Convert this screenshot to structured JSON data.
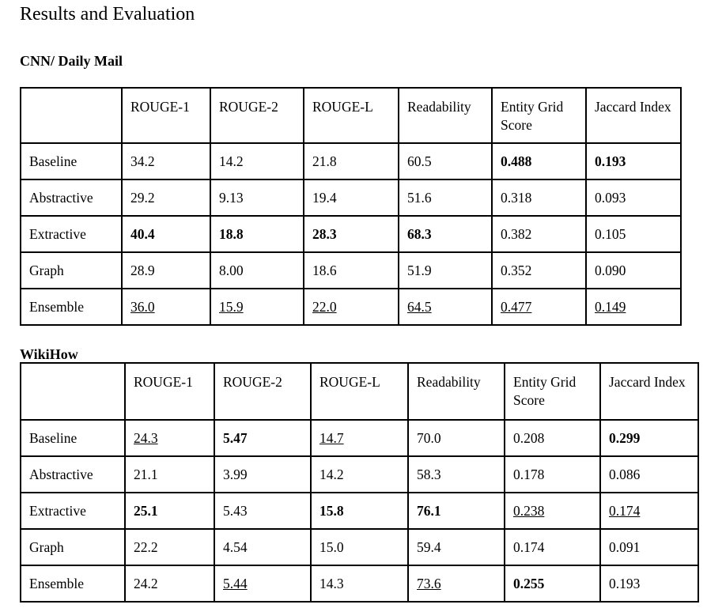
{
  "title": "Results and Evaluation",
  "tables": [
    {
      "name": "CNN/ Daily Mail",
      "columns": [
        "",
        "ROUGE-1",
        "ROUGE-2",
        "ROUGE-L",
        "Readability",
        "Entity Grid Score",
        "Jaccard Index"
      ],
      "rows": [
        {
          "cells": [
            "Baseline",
            "34.2",
            "14.2",
            "21.8",
            "60.5",
            "0.488",
            "0.193"
          ],
          "bold": [
            5,
            6
          ],
          "underline": []
        },
        {
          "cells": [
            "Abstractive",
            "29.2",
            "9.13",
            "19.4",
            "51.6",
            "0.318",
            "0.093"
          ],
          "bold": [],
          "underline": []
        },
        {
          "cells": [
            "Extractive",
            "40.4",
            "18.8",
            "28.3",
            "68.3",
            "0.382",
            "0.105"
          ],
          "bold": [
            1,
            2,
            3,
            4
          ],
          "underline": []
        },
        {
          "cells": [
            "Graph",
            "28.9",
            "8.00",
            "18.6",
            "51.9",
            "0.352",
            "0.090"
          ],
          "bold": [],
          "underline": []
        },
        {
          "cells": [
            "Ensemble",
            "36.0",
            "15.9",
            "22.0",
            "64.5",
            "0.477",
            "0.149"
          ],
          "bold": [],
          "underline": [
            1,
            2,
            3,
            4,
            5,
            6
          ]
        }
      ]
    },
    {
      "name": "WikiHow",
      "columns": [
        "",
        "ROUGE-1",
        "ROUGE-2",
        "ROUGE-L",
        "Readability",
        "Entity Grid Score",
        "Jaccard Index"
      ],
      "rows": [
        {
          "cells": [
            "Baseline",
            "24.3",
            "5.47",
            "14.7",
            "70.0",
            "0.208",
            "0.299"
          ],
          "bold": [
            2,
            6
          ],
          "underline": [
            1,
            3
          ]
        },
        {
          "cells": [
            "Abstractive",
            "21.1",
            "3.99",
            "14.2",
            "58.3",
            "0.178",
            "0.086"
          ],
          "bold": [],
          "underline": []
        },
        {
          "cells": [
            "Extractive",
            "25.1",
            "5.43",
            "15.8",
            "76.1",
            "0.238",
            "0.174"
          ],
          "bold": [
            1,
            3,
            4
          ],
          "underline": [
            5,
            6
          ]
        },
        {
          "cells": [
            "Graph",
            "22.2",
            "4.54",
            "15.0",
            "59.4",
            "0.174",
            "0.091"
          ],
          "bold": [],
          "underline": []
        },
        {
          "cells": [
            "Ensemble",
            "24.2",
            "5.44",
            "14.3",
            "73.6",
            "0.255",
            "0.193"
          ],
          "bold": [
            5
          ],
          "underline": [
            2,
            4
          ]
        }
      ]
    }
  ]
}
